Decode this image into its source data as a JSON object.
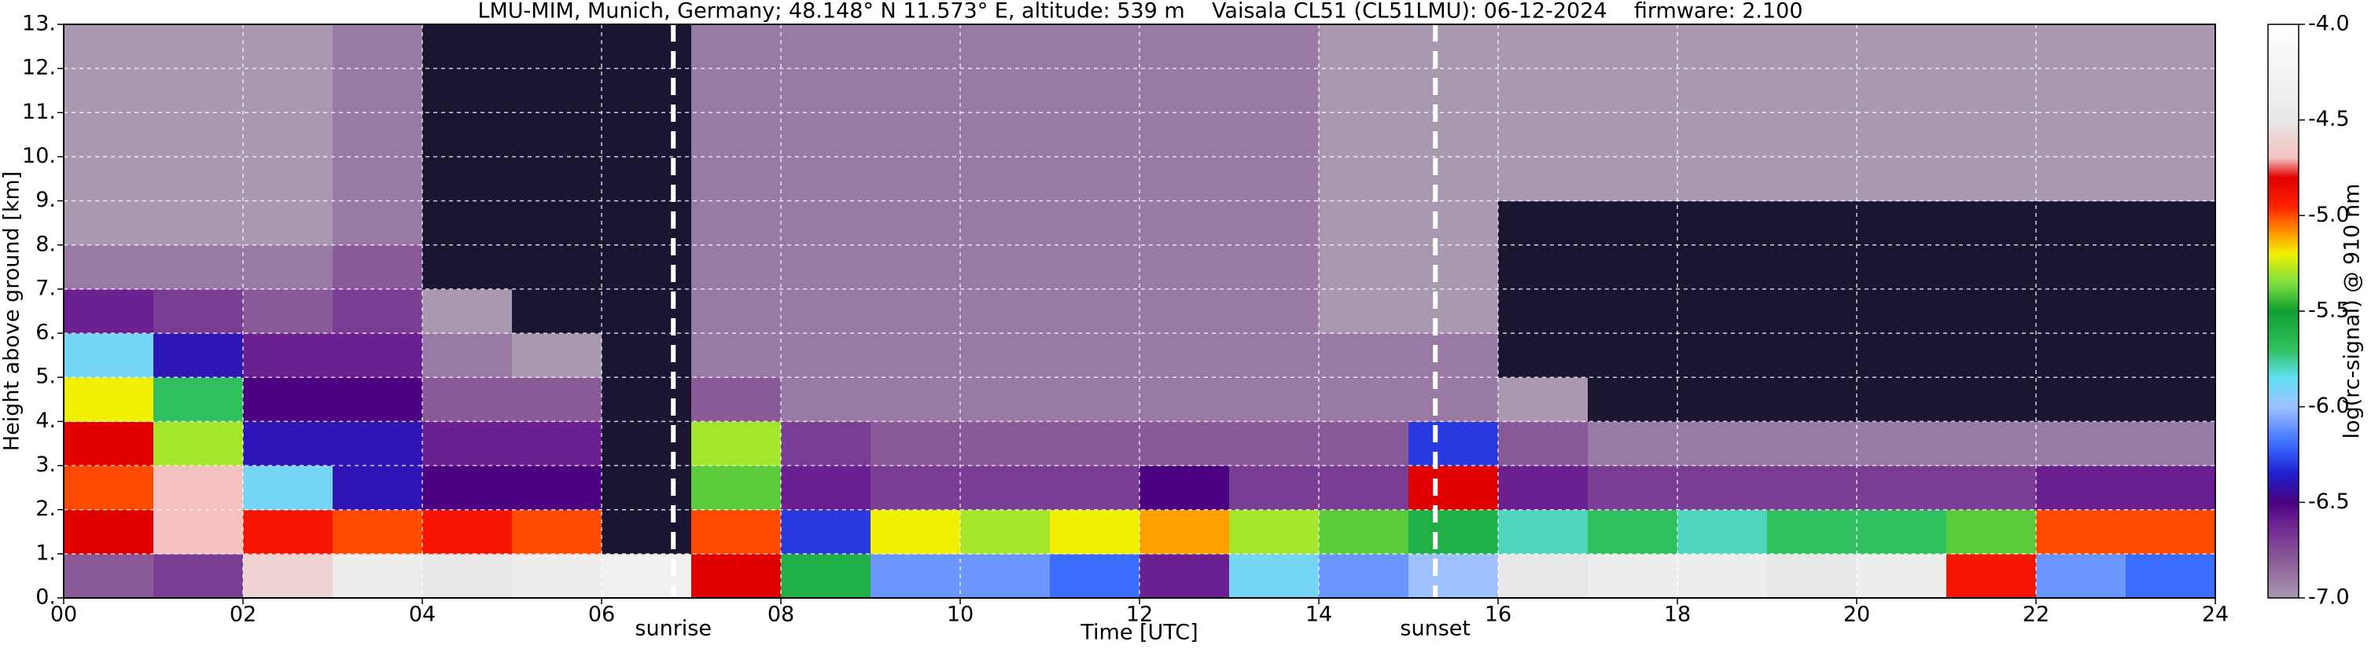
{
  "chart_data": {
    "type": "heatmap",
    "title": "LMU-MIM, Munich, Germany; 48.148° N 11.573° E, altitude: 539 m    Vaisala CL51 (CL51LMU): 06-12-2024    firmware: 2.100",
    "x_label": "Time [UTC]",
    "y_label": "Height above ground [km]",
    "colorbar_label": "log(rc-signal) @ 910 nm",
    "x": [
      0.5,
      1.5,
      2.5,
      3.5,
      4.5,
      5.5,
      6.5,
      7.5,
      8.5,
      9.5,
      10.5,
      11.5,
      12.5,
      13.5,
      14.5,
      15.5,
      16.5,
      17.5,
      18.5,
      19.5,
      20.5,
      21.5,
      22.5,
      23.5
    ],
    "y": [
      0.5,
      1.5,
      2.5,
      3.5,
      4.5,
      5.5,
      6.5,
      7.5,
      8.5,
      9.5,
      10.5,
      11.5,
      12.5
    ],
    "z": [
      [
        -6.8,
        -6.7,
        -4.6,
        -4.4,
        -4.5,
        -4.4,
        -4.3,
        -4.8,
        -5.6,
        -6.1,
        -6.1,
        -6.2,
        -6.6,
        -5.9,
        -6.1,
        -6.0,
        -4.5,
        -4.4,
        -4.4,
        -4.5,
        -4.4,
        -4.9,
        -6.1,
        -6.2
      ],
      [
        -4.8,
        -4.7,
        -4.9,
        -5.0,
        -4.9,
        -5.0,
        -7.3,
        -5.0,
        -6.3,
        -5.2,
        -5.3,
        -5.2,
        -5.1,
        -5.3,
        -5.4,
        -5.6,
        -5.8,
        -5.7,
        -5.8,
        -5.7,
        -5.7,
        -5.4,
        -5.0,
        -5.0
      ],
      [
        -5.0,
        -4.7,
        -5.9,
        -6.4,
        -6.5,
        -6.5,
        -7.4,
        -5.4,
        -6.6,
        -6.7,
        -6.7,
        -6.7,
        -6.5,
        -6.7,
        -6.7,
        -4.8,
        -6.6,
        -6.7,
        -6.7,
        -6.7,
        -6.7,
        -6.7,
        -6.6,
        -6.6
      ],
      [
        -4.8,
        -5.3,
        -6.4,
        -6.4,
        -6.6,
        -6.6,
        -7.5,
        -5.3,
        -6.7,
        -6.8,
        -6.8,
        -6.8,
        -6.8,
        -6.8,
        -6.8,
        -6.3,
        -6.8,
        -6.9,
        -6.9,
        -6.9,
        -6.9,
        -6.9,
        -6.9,
        -6.9
      ],
      [
        -5.2,
        -5.7,
        -6.5,
        -6.5,
        -6.8,
        -6.8,
        -7.5,
        -6.8,
        -6.9,
        -6.9,
        -6.9,
        -6.9,
        -6.9,
        -6.9,
        -6.9,
        -6.9,
        -7.0,
        -7.1,
        -7.1,
        -7.1,
        -7.1,
        -7.1,
        -7.1,
        -7.1
      ],
      [
        -5.9,
        -6.4,
        -6.6,
        -6.6,
        -6.9,
        -7.0,
        -7.6,
        -6.9,
        -6.9,
        -6.9,
        -6.9,
        -6.9,
        -6.9,
        -6.9,
        -6.9,
        -6.9,
        -7.1,
        -7.1,
        -7.1,
        -7.1,
        -7.2,
        -7.2,
        -7.2,
        -7.2
      ],
      [
        -6.6,
        -6.7,
        -6.8,
        -6.7,
        -7.0,
        -7.1,
        -7.6,
        -6.9,
        -6.9,
        -6.9,
        -6.9,
        -6.9,
        -6.9,
        -6.9,
        -7.0,
        -7.0,
        -7.1,
        -7.1,
        -7.1,
        -7.1,
        -7.2,
        -7.2,
        -7.2,
        -7.2
      ],
      [
        -6.9,
        -6.9,
        -6.9,
        -6.8,
        -7.1,
        -7.1,
        -7.6,
        -6.9,
        -6.9,
        -6.9,
        -6.9,
        -6.9,
        -6.9,
        -6.9,
        -7.0,
        -7.0,
        -7.1,
        -7.1,
        -7.1,
        -7.1,
        -7.2,
        -7.2,
        -7.2,
        -7.2
      ],
      [
        -7.0,
        -7.0,
        -7.0,
        -6.9,
        -7.1,
        -7.1,
        -7.6,
        -6.9,
        -6.9,
        -6.9,
        -6.9,
        -6.9,
        -6.9,
        -6.9,
        -7.0,
        -7.0,
        -7.1,
        -7.1,
        -7.1,
        -7.1,
        -7.1,
        -7.1,
        -7.1,
        -7.1
      ],
      [
        -7.0,
        -7.0,
        -7.0,
        -6.9,
        -7.1,
        -7.1,
        -7.6,
        -6.9,
        -6.9,
        -6.9,
        -6.9,
        -6.9,
        -6.9,
        -6.9,
        -7.0,
        -7.0,
        -7.0,
        -7.0,
        -7.0,
        -7.0,
        -7.0,
        -7.0,
        -7.0,
        -7.0
      ],
      [
        -7.0,
        -7.0,
        -7.0,
        -6.9,
        -7.1,
        -7.1,
        -7.6,
        -6.9,
        -6.9,
        -6.9,
        -6.9,
        -6.9,
        -6.9,
        -6.9,
        -7.0,
        -7.0,
        -7.0,
        -7.0,
        -7.0,
        -7.0,
        -7.0,
        -7.0,
        -7.0,
        -7.0
      ],
      [
        -7.0,
        -7.0,
        -7.0,
        -6.9,
        -7.1,
        -7.1,
        -7.6,
        -6.9,
        -6.9,
        -6.9,
        -6.9,
        -6.9,
        -6.9,
        -6.9,
        -7.0,
        -7.0,
        -7.0,
        -7.0,
        -7.0,
        -7.0,
        -7.0,
        -7.0,
        -7.0,
        -7.0
      ],
      [
        -7.0,
        -7.0,
        -7.0,
        -6.9,
        -7.1,
        -7.1,
        -7.6,
        -6.9,
        -6.9,
        -6.9,
        -6.9,
        -6.9,
        -6.9,
        -6.9,
        -7.0,
        -7.0,
        -7.0,
        -7.0,
        -7.0,
        -7.0,
        -7.0,
        -7.0,
        -7.0,
        -7.0
      ]
    ],
    "xlim": [
      0,
      24
    ],
    "xticks": [
      {
        "value": 0,
        "label": "00"
      },
      {
        "value": 2,
        "label": "02"
      },
      {
        "value": 4,
        "label": "04"
      },
      {
        "value": 6,
        "label": "06"
      },
      {
        "value": 8,
        "label": "08"
      },
      {
        "value": 10,
        "label": "10"
      },
      {
        "value": 12,
        "label": "12"
      },
      {
        "value": 14,
        "label": "14"
      },
      {
        "value": 16,
        "label": "16"
      },
      {
        "value": 18,
        "label": "18"
      },
      {
        "value": 20,
        "label": "20"
      },
      {
        "value": 22,
        "label": "22"
      },
      {
        "value": 24,
        "label": "24"
      }
    ],
    "ylim": [
      0,
      13
    ],
    "yticks": [
      {
        "value": 0,
        "label": "0."
      },
      {
        "value": 1,
        "label": "1."
      },
      {
        "value": 2,
        "label": "2."
      },
      {
        "value": 3,
        "label": "3."
      },
      {
        "value": 4,
        "label": "4."
      },
      {
        "value": 5,
        "label": "5."
      },
      {
        "value": 6,
        "label": "6."
      },
      {
        "value": 7,
        "label": "7."
      },
      {
        "value": 8,
        "label": "8."
      },
      {
        "value": 9,
        "label": "9."
      },
      {
        "value": 10,
        "label": "10."
      },
      {
        "value": 11,
        "label": "11."
      },
      {
        "value": 12,
        "label": "12."
      },
      {
        "value": 13,
        "label": "13."
      }
    ],
    "clim": [
      -7,
      -4
    ],
    "cticks": [
      {
        "value": -7,
        "label": "-7.0"
      },
      -6.5,
      {
        "value": -6,
        "label": "-6.0"
      },
      -5.5,
      {
        "value": -5,
        "label": "-5.0"
      },
      -4.5,
      {
        "value": -4,
        "label": "-4.0"
      }
    ],
    "colorscale": [
      [
        -7.0,
        "#a899b0"
      ],
      [
        -6.8,
        "#8a5a98"
      ],
      [
        -6.6,
        "#6a2090"
      ],
      [
        -6.5,
        "#4a0080"
      ],
      [
        -6.35,
        "#2020d0"
      ],
      [
        -6.2,
        "#3a6cff"
      ],
      [
        -6.0,
        "#9ec0ff"
      ],
      [
        -5.85,
        "#60e0f0"
      ],
      [
        -5.7,
        "#30c060"
      ],
      [
        -5.5,
        "#10a030"
      ],
      [
        -5.35,
        "#80e040"
      ],
      [
        -5.2,
        "#f0f000"
      ],
      [
        -5.1,
        "#ffa000"
      ],
      [
        -4.95,
        "#ff2000"
      ],
      [
        -4.8,
        "#e00000"
      ],
      [
        -4.7,
        "#f4c0c0"
      ],
      [
        -4.5,
        "#e8e8e8"
      ],
      [
        -4.0,
        "#ffffff"
      ]
    ],
    "under_color": "#1a1530",
    "grid": true,
    "annotations": [
      {
        "text": "sunrise",
        "x": 6.8
      },
      {
        "text": "sunset",
        "x": 15.3
      }
    ]
  }
}
